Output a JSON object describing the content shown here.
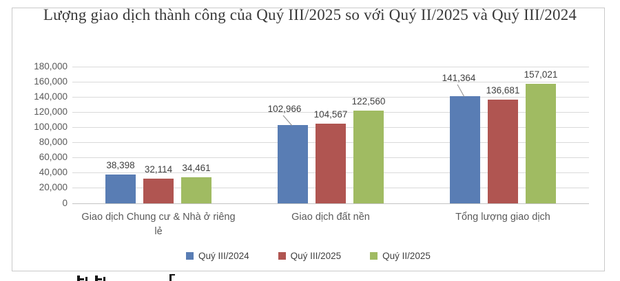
{
  "chart_data": {
    "type": "bar",
    "title": "Lượng giao dịch thành công của Quý III/2025 so với Quý II/2025 và Quý III/2024",
    "categories": [
      "Giao dịch Chung cư & Nhà ở riêng lẻ",
      "Giao dịch đất nền",
      "Tổng lượng giao dịch"
    ],
    "series": [
      {
        "name": "Quý III/2024",
        "color": "#597DB4",
        "values": [
          38398,
          102966,
          141364
        ]
      },
      {
        "name": "Quý III/2025",
        "color": "#B05551",
        "values": [
          32114,
          104567,
          136681
        ]
      },
      {
        "name": "Quý II/2025",
        "color": "#A0BB62",
        "values": [
          34461,
          122560,
          157021
        ]
      }
    ],
    "data_labels": [
      [
        "38,398",
        "102,966",
        "141,364"
      ],
      [
        "32,114",
        "104,567",
        "136,681"
      ],
      [
        "34,461",
        "122,560",
        "157,021"
      ]
    ],
    "ylim": [
      0,
      180000
    ],
    "ytick_step": 20000,
    "ytick_labels": [
      "0",
      "20,000",
      "40,000",
      "60,000",
      "80,000",
      "100,000",
      "120,000",
      "140,000",
      "160,000",
      "180,000"
    ],
    "grid": true,
    "legend_position": "bottom",
    "colors": {
      "grid": "#D9D9D9",
      "axis_text": "#595959",
      "label_text": "#3F3F3F",
      "frame_border": "#C9C9C9"
    }
  }
}
